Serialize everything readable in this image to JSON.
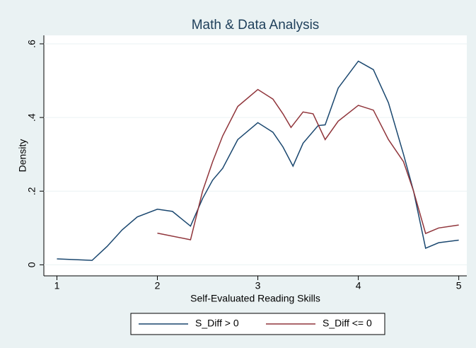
{
  "chart_data": {
    "type": "line",
    "title": "Math & Data Analysis",
    "x_label": "Self-Evaluated Reading Skills",
    "y_label": "Density",
    "xlim": [
      0.87,
      5.08
    ],
    "ylim": [
      -0.03,
      0.623
    ],
    "xticks": [
      1,
      2,
      3,
      4,
      5
    ],
    "yticks": [
      0,
      {
        "value": 0.2,
        "label": ".2"
      },
      {
        "value": 0.4,
        "label": ".4"
      },
      {
        "value": 0.6,
        "label": ".6"
      }
    ],
    "grid": true,
    "legend": "bottom",
    "series": [
      {
        "name": "S_Diff > 0",
        "color": "#1a476f",
        "x": [
          1.0,
          1.35,
          1.5,
          1.65,
          1.8,
          2.0,
          2.15,
          2.33,
          2.45,
          2.55,
          2.65,
          2.8,
          3.0,
          3.15,
          3.25,
          3.35,
          3.45,
          3.6,
          3.67,
          3.8,
          4.0,
          4.15,
          4.3,
          4.45,
          4.55,
          4.67,
          4.8,
          5.0
        ],
        "values": [
          0.016,
          0.012,
          0.05,
          0.095,
          0.13,
          0.151,
          0.145,
          0.105,
          0.18,
          0.23,
          0.262,
          0.34,
          0.386,
          0.36,
          0.32,
          0.268,
          0.33,
          0.378,
          0.38,
          0.48,
          0.553,
          0.53,
          0.44,
          0.3,
          0.2,
          0.045,
          0.06,
          0.067
        ]
      },
      {
        "name": "S_Diff <= 0",
        "color": "#90353b",
        "x": [
          2.0,
          2.33,
          2.45,
          2.55,
          2.65,
          2.8,
          3.0,
          3.15,
          3.25,
          3.33,
          3.45,
          3.55,
          3.67,
          3.8,
          4.0,
          4.15,
          4.3,
          4.45,
          4.55,
          4.67,
          4.8,
          5.0
        ],
        "values": [
          0.086,
          0.068,
          0.2,
          0.28,
          0.35,
          0.43,
          0.476,
          0.45,
          0.41,
          0.373,
          0.415,
          0.41,
          0.34,
          0.39,
          0.433,
          0.42,
          0.34,
          0.28,
          0.2,
          0.085,
          0.1,
          0.108
        ]
      }
    ]
  }
}
